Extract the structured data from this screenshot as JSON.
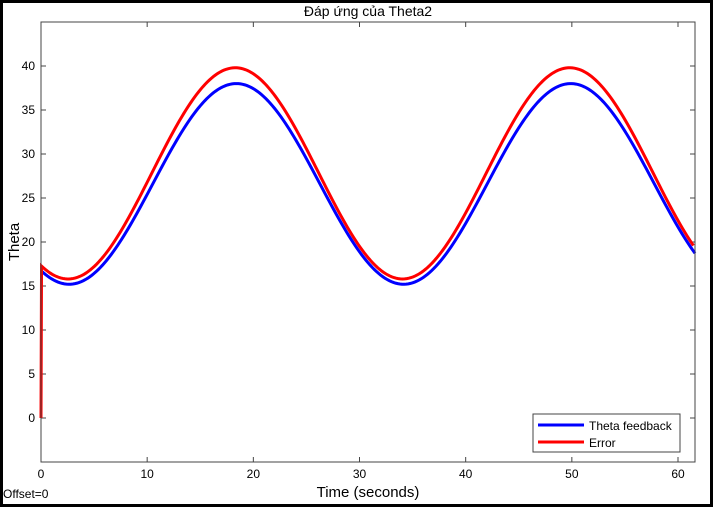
{
  "chart_data": {
    "type": "line",
    "title": "Đáp ứng của Theta2",
    "xlabel": "Time (seconds)",
    "ylabel": "Theta",
    "xlim": [
      0,
      61.6
    ],
    "ylim": [
      -5,
      45
    ],
    "xticks": [
      0,
      10,
      20,
      30,
      40,
      50,
      60
    ],
    "yticks": [
      0,
      5,
      10,
      15,
      20,
      25,
      30,
      35,
      40
    ],
    "grid": false,
    "legend_position": "bottom-right",
    "model": "value = offset + amplitude*cos(2*pi*(t - peak_time)/period)",
    "series": [
      {
        "name": "Theta feedback",
        "color": "#0000ff",
        "offset": 26.6,
        "amplitude": 11.4,
        "period": 31.5,
        "peak_time": 18.4,
        "start_point": null
      },
      {
        "name": "Error",
        "color": "#ff0000",
        "offset": 27.8,
        "amplitude": 12.0,
        "period": 31.5,
        "peak_time": 18.3,
        "start_point": [
          0,
          0
        ]
      }
    ]
  },
  "footer": {
    "offset_label": "Offset=0"
  }
}
